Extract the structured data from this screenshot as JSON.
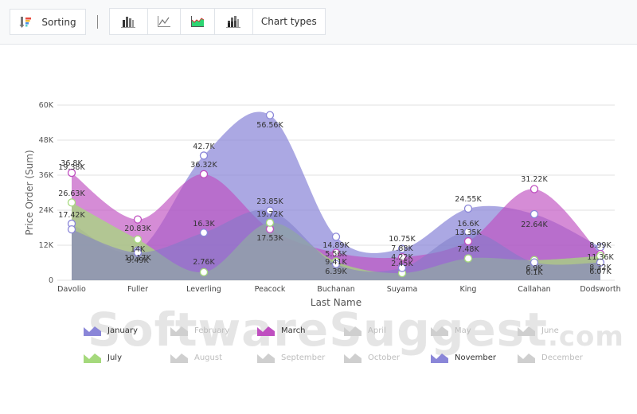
{
  "toolbar": {
    "sorting_label": "Sorting",
    "chart_types_label": "Chart types",
    "icons": [
      "sorting-icon",
      "bar-chart-icon",
      "line-chart-icon",
      "area-chart-icon",
      "stacked-bar-chart-icon"
    ]
  },
  "watermark": {
    "main": "SoftwareSuggest",
    "suffix": ".com"
  },
  "chart_data": {
    "type": "area",
    "subtype": "spline-area",
    "title": "",
    "xlabel": "Last Name",
    "ylabel": "Price Order (Sum)",
    "ylim": [
      0,
      60000
    ],
    "yticks": [
      "0",
      "12K",
      "24K",
      "36K",
      "48K",
      "60K"
    ],
    "grid": true,
    "legend_position": "bottom",
    "categories": [
      "Davolio",
      "Fuller",
      "Leverling",
      "Peacock",
      "Buchanan",
      "Suyama",
      "King",
      "Callahan",
      "Dodsworth"
    ],
    "series": [
      {
        "name": "January",
        "color": "#8a86d8",
        "visible": true,
        "values": [
          19380,
          10170,
          42700,
          56560,
          14890,
          10750,
          24550,
          22640,
          11360
        ],
        "labels": [
          "19.38K",
          "10.17K",
          "42.7K",
          "56.56K",
          "14.89K",
          "10.75K",
          "24.55K",
          "22.64K",
          "11.36K"
        ]
      },
      {
        "name": "March",
        "color": "#bf4fc0",
        "visible": true,
        "values": [
          36800,
          20830,
          36320,
          17530,
          9410,
          7880,
          13350,
          31220,
          8990
        ],
        "labels": [
          "36.8K",
          "20.83K",
          "36.32K",
          "17.53K",
          "9.41K",
          "7.88K",
          "13.35K",
          "31.22K",
          "8.99K"
        ]
      },
      {
        "name": "July",
        "color": "#a5d97c",
        "visible": true,
        "values": [
          26630,
          14000,
          2760,
          19720,
          6390,
          2450,
          7480,
          6900,
          8320
        ],
        "labels": [
          "26.63K",
          "14K",
          "2.76K",
          "19.72K",
          "6.39K",
          "2.45K",
          "7.48K",
          "6.9K",
          "8.32K"
        ]
      },
      {
        "name": "November",
        "color": "#8a86d8",
        "visible": true,
        "values": [
          17420,
          9490,
          16300,
          23850,
          5560,
          4220,
          16600,
          6100,
          6070
        ],
        "labels": [
          "17.42K",
          "9.49K",
          "16.3K",
          "23.85K",
          "5.56K",
          "4.22K",
          "16.6K",
          "6.1K",
          "6.07K"
        ]
      }
    ],
    "legend": [
      {
        "name": "January",
        "visible": true,
        "color": "#8a86d8"
      },
      {
        "name": "February",
        "visible": false,
        "color": "#c9c9c9"
      },
      {
        "name": "March",
        "visible": true,
        "color": "#bf4fc0"
      },
      {
        "name": "April",
        "visible": false,
        "color": "#c9c9c9"
      },
      {
        "name": "May",
        "visible": false,
        "color": "#c9c9c9"
      },
      {
        "name": "June",
        "visible": false,
        "color": "#c9c9c9"
      },
      {
        "name": "July",
        "visible": true,
        "color": "#a5d97c"
      },
      {
        "name": "August",
        "visible": false,
        "color": "#c9c9c9"
      },
      {
        "name": "September",
        "visible": false,
        "color": "#c9c9c9"
      },
      {
        "name": "October",
        "visible": false,
        "color": "#c9c9c9"
      },
      {
        "name": "November",
        "visible": true,
        "color": "#8a86d8"
      },
      {
        "name": "December",
        "visible": false,
        "color": "#c9c9c9"
      }
    ]
  }
}
